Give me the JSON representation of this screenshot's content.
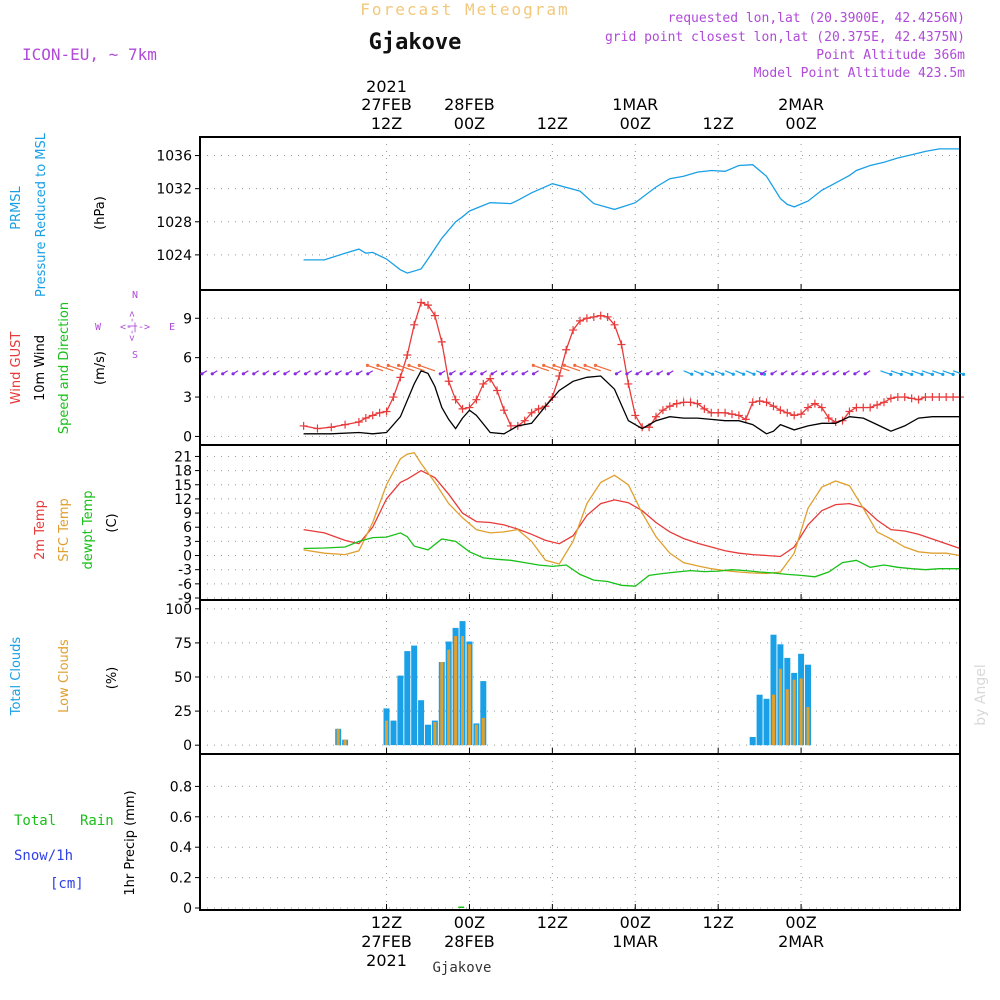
{
  "header": {
    "subtitle": "Forecast Meteogram",
    "station": "Gjakove",
    "model": "ICON-EU, ~ 7km",
    "requested": "requested lon,lat (20.3900E, 42.4256N)",
    "gridpoint": "grid point closest lon,lat (20.375E, 42.4375N)",
    "point_alt": "Point Altitude 366m",
    "model_alt": "Model Point Altitude 423.5m",
    "credit": "by Angel",
    "footer_station": "Gjakove"
  },
  "colors": {
    "blue": "#1aa0e6",
    "red": "#e83a3a",
    "orange": "#e0a030",
    "green": "#18c018",
    "black": "#000000",
    "purple": "#b04ad8",
    "darkblue": "#3040e8"
  },
  "time_axis": {
    "top_year": "2021",
    "ticks": [
      {
        "x": 0,
        "day": "27FEB",
        "hour": "12Z",
        "year": "2021"
      },
      {
        "x": 1,
        "day": "28FEB",
        "hour": "00Z"
      },
      {
        "x": 2,
        "day": "",
        "hour": "12Z"
      },
      {
        "x": 3,
        "day": "1MAR",
        "hour": "00Z"
      },
      {
        "x": 4,
        "day": "",
        "hour": "12Z"
      },
      {
        "x": 5,
        "day": "2MAR",
        "hour": "00Z"
      }
    ]
  },
  "panels": {
    "pressure": {
      "label1": "PRMSL",
      "label2": "Pressure Reduced to MSL",
      "unit": "(hPa)"
    },
    "wind": {
      "label_gust": "Wind GUST",
      "label_wind": "10m Wind",
      "label_dir": "Speed and Direction",
      "unit": "(m/s)",
      "compass_n": "N",
      "compass_s": "S",
      "compass_w": "W",
      "compass_e": "E",
      "compass_ns": "<-|->",
      "compass_we": "<-|->"
    },
    "temp": {
      "label1": "2m Temp",
      "label2": "SFC Temp",
      "label3": "dewpt Temp",
      "unit": "(C)"
    },
    "clouds": {
      "label1": "Total Clouds",
      "label2": "Low Clouds",
      "unit": "(%)"
    },
    "precip": {
      "label1": "Total",
      "label2": "Rain",
      "label3": "Snow/1h",
      "label4": "[cm]",
      "unit": "1hr Precip (mm)"
    }
  },
  "chart_data": [
    {
      "type": "line",
      "title": "PRMSL Pressure Reduced to MSL",
      "ylabel": "(hPa)",
      "x_unit": "hours from 27FEB 00Z",
      "ylim": [
        1020,
        1038
      ],
      "yticks": [
        1024,
        1028,
        1032,
        1036
      ],
      "series": [
        {
          "name": "PRMSL",
          "color": "#1aa0e6",
          "x": [
            0,
            3,
            6,
            8,
            9,
            10,
            12,
            14,
            15,
            17,
            18,
            20,
            22,
            23,
            24,
            27,
            30,
            31,
            33,
            36,
            40,
            42,
            45,
            48,
            51,
            53,
            55,
            57,
            59,
            61,
            63,
            65,
            67,
            69,
            70,
            71,
            73,
            75,
            77,
            79,
            80,
            82,
            84,
            86,
            88,
            90,
            92,
            94,
            95
          ],
          "y": [
            1023.4,
            1023.4,
            1024.2,
            1024.7,
            1024.2,
            1024.3,
            1023.5,
            1022.2,
            1021.8,
            1022.3,
            1023.5,
            1026.0,
            1028.0,
            1028.6,
            1029.3,
            1030.3,
            1030.2,
            1030.6,
            1031.5,
            1032.6,
            1031.7,
            1030.2,
            1029.5,
            1030.3,
            1032.2,
            1033.2,
            1033.5,
            1034.0,
            1034.2,
            1034.1,
            1034.8,
            1034.9,
            1033.5,
            1030.8,
            1030.1,
            1029.8,
            1030.5,
            1031.8,
            1032.7,
            1033.6,
            1034.2,
            1034.8,
            1035.2,
            1035.7,
            1036.1,
            1036.5,
            1036.8,
            1036.8,
            1036.8
          ]
        }
      ]
    },
    {
      "type": "line",
      "title": "Wind GUST / 10m Wind Speed and Direction",
      "ylabel": "(m/s)",
      "x_unit": "hours from 27FEB 00Z",
      "ylim": [
        -0.5,
        11
      ],
      "yticks": [
        0,
        3,
        6,
        9
      ],
      "series": [
        {
          "name": "Wind GUST",
          "color": "#e83a3a",
          "x": [
            0,
            2,
            4,
            6,
            8,
            9,
            10,
            11,
            12,
            13,
            14,
            15,
            16,
            17,
            18,
            19,
            20,
            21,
            22,
            23,
            24,
            25,
            26,
            27,
            28,
            29,
            30,
            31,
            32,
            33,
            34,
            35,
            36,
            37,
            38,
            39,
            40,
            41,
            42,
            43,
            44,
            45,
            46,
            47,
            48,
            49,
            50,
            51,
            52,
            53,
            54,
            55,
            56,
            57,
            58,
            59,
            60,
            61,
            62,
            63,
            64,
            65,
            66,
            67,
            68,
            69,
            70,
            71,
            72,
            73,
            74,
            75,
            76,
            77,
            78,
            79,
            80,
            81,
            82,
            83,
            84,
            85,
            86,
            87,
            88,
            89,
            90,
            91,
            92,
            93,
            94,
            95
          ],
          "y": [
            0.8,
            0.6,
            0.7,
            0.9,
            1.1,
            1.4,
            1.6,
            1.8,
            1.9,
            3.0,
            4.5,
            6.2,
            8.5,
            10.2,
            10.0,
            9.2,
            7.2,
            4.2,
            2.8,
            2.1,
            2.2,
            2.8,
            4.0,
            4.4,
            3.5,
            2.0,
            0.8,
            0.8,
            1.2,
            1.8,
            2.1,
            2.3,
            3.0,
            4.6,
            6.6,
            8.1,
            8.8,
            9.0,
            9.1,
            9.2,
            9.1,
            8.5,
            7.0,
            4.0,
            1.6,
            0.7,
            0.7,
            1.5,
            2.0,
            2.3,
            2.5,
            2.6,
            2.6,
            2.5,
            2.1,
            1.8,
            1.8,
            1.8,
            1.7,
            1.6,
            1.3,
            2.6,
            2.7,
            2.6,
            2.3,
            2.0,
            1.8,
            1.6,
            1.7,
            2.2,
            2.5,
            2.2,
            1.4,
            1.1,
            1.2,
            1.9,
            2.2,
            2.2,
            2.2,
            2.4,
            2.6,
            2.9,
            3.0,
            3.0,
            2.9,
            2.8,
            3.0,
            3.0,
            3.0,
            3.0,
            3.0,
            3.0
          ]
        },
        {
          "name": "10m Wind",
          "color": "#000000",
          "x": [
            0,
            4,
            8,
            10,
            12,
            14,
            16,
            17,
            18,
            19,
            20,
            21,
            22,
            23,
            24,
            25,
            27,
            29,
            31,
            33,
            35,
            37,
            39,
            41,
            43,
            45,
            47,
            49,
            51,
            53,
            55,
            57,
            59,
            61,
            63,
            65,
            67,
            68,
            69,
            71,
            73,
            75,
            77,
            79,
            81,
            83,
            85,
            87,
            89,
            91,
            93,
            95
          ],
          "y": [
            0.2,
            0.2,
            0.3,
            0.2,
            0.3,
            1.5,
            4.0,
            5.0,
            4.8,
            3.8,
            2.2,
            1.3,
            0.6,
            1.4,
            2.0,
            1.6,
            0.3,
            0.2,
            0.8,
            1.0,
            2.3,
            3.5,
            4.2,
            4.5,
            4.6,
            3.6,
            1.2,
            0.6,
            1.2,
            1.5,
            1.4,
            1.4,
            1.3,
            1.2,
            1.2,
            0.9,
            0.2,
            0.4,
            0.9,
            0.5,
            0.8,
            1.0,
            1.0,
            1.5,
            1.4,
            0.9,
            0.4,
            0.8,
            1.4,
            1.5,
            1.5,
            1.5
          ]
        }
      ]
    },
    {
      "type": "line",
      "title": "2m Temp / SFC Temp / dewpt Temp",
      "ylabel": "(C)",
      "x_unit": "hours from 27FEB 00Z",
      "ylim": [
        -9,
        23
      ],
      "yticks": [
        -9,
        -6,
        -3,
        0,
        3,
        6,
        9,
        12,
        15,
        18,
        21
      ],
      "series": [
        {
          "name": "2m Temp",
          "color": "#e83a3a",
          "x": [
            0,
            3,
            6,
            8,
            10,
            12,
            14,
            15,
            17,
            19,
            21,
            23,
            25,
            27,
            29,
            31,
            33,
            35,
            37,
            39,
            41,
            43,
            45,
            47,
            49,
            51,
            53,
            55,
            57,
            59,
            61,
            63,
            65,
            67,
            69,
            71,
            73,
            75,
            77,
            79,
            81,
            83,
            85,
            87,
            89,
            91,
            93,
            95
          ],
          "y": [
            5.5,
            4.8,
            3.2,
            2.5,
            6.0,
            12.0,
            15.5,
            16.2,
            18.0,
            16.5,
            13.0,
            9.0,
            7.2,
            7.0,
            6.5,
            5.6,
            4.5,
            3.2,
            2.5,
            4.2,
            8.5,
            11.0,
            11.8,
            11.2,
            9.5,
            7.0,
            5.0,
            3.6,
            2.6,
            1.8,
            1.0,
            0.5,
            0.2,
            0.0,
            -0.2,
            1.8,
            6.5,
            9.5,
            10.8,
            11.0,
            10.2,
            7.5,
            5.5,
            5.2,
            4.5,
            3.5,
            2.5,
            1.5
          ]
        },
        {
          "name": "SFC Temp",
          "color": "#e0a030",
          "x": [
            0,
            3,
            6,
            8,
            10,
            12,
            14,
            15,
            16,
            17,
            19,
            21,
            23,
            25,
            27,
            29,
            31,
            33,
            35,
            37,
            39,
            41,
            43,
            45,
            47,
            49,
            51,
            53,
            55,
            57,
            59,
            61,
            63,
            65,
            67,
            69,
            71,
            73,
            75,
            77,
            79,
            81,
            83,
            85,
            87,
            89,
            91,
            93,
            95
          ],
          "y": [
            1.2,
            0.5,
            0.2,
            1.0,
            7.0,
            15.0,
            20.5,
            21.5,
            21.8,
            19.5,
            15.5,
            11.0,
            8.0,
            5.5,
            4.8,
            5.0,
            5.5,
            3.0,
            -1.0,
            -1.8,
            3.0,
            11.0,
            15.5,
            17.0,
            15.0,
            9.0,
            4.0,
            0.5,
            -1.5,
            -2.2,
            -2.8,
            -3.2,
            -3.5,
            -3.7,
            -3.8,
            -3.5,
            0.5,
            10.0,
            14.5,
            15.8,
            14.8,
            10.0,
            5.0,
            3.5,
            1.8,
            0.8,
            0.5,
            0.5,
            0.0
          ]
        },
        {
          "name": "dewpt Temp",
          "color": "#18c018",
          "x": [
            0,
            3,
            6,
            8,
            10,
            12,
            14,
            15,
            16,
            18,
            20,
            22,
            24,
            26,
            28,
            30,
            32,
            34,
            36,
            38,
            40,
            42,
            44,
            46,
            48,
            50,
            52,
            54,
            56,
            58,
            60,
            62,
            64,
            66,
            68,
            70,
            72,
            74,
            76,
            78,
            80,
            82,
            84,
            86,
            88,
            90,
            92,
            94,
            95
          ],
          "y": [
            1.5,
            1.6,
            1.8,
            3.0,
            3.8,
            3.9,
            4.8,
            4.0,
            2.0,
            1.2,
            3.5,
            3.0,
            0.8,
            -0.5,
            -0.8,
            -1.0,
            -1.5,
            -2.0,
            -2.3,
            -2.0,
            -4.0,
            -5.2,
            -5.5,
            -6.3,
            -6.5,
            -4.2,
            -3.8,
            -3.5,
            -3.2,
            -3.4,
            -3.3,
            -3.0,
            -3.2,
            -3.5,
            -3.7,
            -4.0,
            -4.2,
            -4.5,
            -3.5,
            -1.5,
            -1.0,
            -2.5,
            -2.0,
            -2.5,
            -2.8,
            -3.0,
            -2.8,
            -2.8,
            -2.8
          ]
        }
      ]
    },
    {
      "type": "bar",
      "title": "Total Clouds / Low Clouds",
      "ylabel": "(%)",
      "x_unit": "hours from 27FEB 00Z",
      "ylim": [
        -5,
        105
      ],
      "yticks": [
        0,
        25,
        50,
        75,
        100
      ],
      "series": [
        {
          "name": "Total Clouds",
          "color": "#1aa0e6",
          "x": [
            5,
            6,
            11,
            12,
            13,
            14,
            15,
            16,
            17,
            18,
            19,
            20,
            21,
            22,
            23,
            24,
            25,
            26,
            27,
            62,
            63,
            64,
            65,
            66,
            67,
            68,
            69,
            70,
            71,
            72,
            73
          ],
          "y": [
            12,
            4,
            0,
            27,
            18,
            51,
            69,
            73,
            33,
            15,
            18,
            61,
            76,
            86,
            91,
            76,
            16,
            47,
            0,
            0,
            0,
            0,
            6,
            37,
            34,
            81,
            74,
            64,
            53,
            67,
            59
          ]
        },
        {
          "name": "Low Clouds",
          "color": "#e0a030",
          "x": [
            5,
            6,
            11,
            12,
            13,
            14,
            15,
            16,
            17,
            18,
            19,
            20,
            21,
            22,
            23,
            24,
            25,
            26,
            27,
            62,
            63,
            64,
            65,
            66,
            67,
            68,
            69,
            70,
            71,
            72,
            73
          ],
          "y": [
            12,
            4,
            0,
            18,
            0,
            0,
            0,
            0,
            0,
            0,
            17,
            61,
            70,
            80,
            80,
            74,
            15,
            20,
            0,
            0,
            0,
            0,
            0,
            0,
            0,
            37,
            56,
            41,
            48,
            49,
            28
          ]
        }
      ]
    },
    {
      "type": "bar",
      "title": "1hr Precip",
      "ylabel": "1hr Precip (mm)",
      "x_unit": "hours from 27FEB 00Z",
      "ylim": [
        0,
        1.0
      ],
      "yticks": [
        0,
        0.2,
        0.4,
        0.6,
        0.8
      ],
      "series": [
        {
          "name": "Total Rain",
          "color": "#18c018",
          "x": [
            22.8
          ],
          "y": [
            0.01
          ]
        },
        {
          "name": "Snow/1h",
          "color": "#3040e8",
          "x": [],
          "y": []
        }
      ]
    }
  ]
}
